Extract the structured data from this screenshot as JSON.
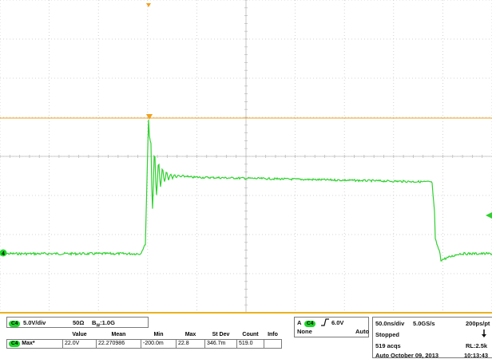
{
  "colors": {
    "trace": "#2fd12f",
    "trigger": "#f0a020",
    "grid": "#c9c9c9",
    "frame": "#e9b21f"
  },
  "channel": {
    "label": "C4",
    "marker": "4",
    "scale": "5.0V/div",
    "impedance": "50Ω",
    "bandwidth_prefix": "B",
    "bandwidth_sub": "W",
    "bandwidth_value": ":1.0G"
  },
  "trigger": {
    "mode_letter": "A",
    "channel": "C4",
    "edge_icon": "rising-edge-icon",
    "level": "6.0V",
    "coupling": "None",
    "type": "Auto"
  },
  "measurement": {
    "headers": [
      "Value",
      "Mean",
      "Min",
      "Max",
      "St Dev",
      "Count",
      "Info"
    ],
    "row": {
      "channel": "C4",
      "name": "Max*",
      "cells": [
        "22.0V",
        "22.270986",
        "-200.0m",
        "22.8",
        "346.7m",
        "519.0",
        ""
      ]
    }
  },
  "acquisition": {
    "timebase": "50.0ns/div",
    "sample_rate": "5.0GS/s",
    "resolution": "200ps/pt",
    "state": "Stopped",
    "acqs": "519 acqs",
    "record_length": "RL:2.5k",
    "mode": "Auto",
    "date": "October 09, 2013",
    "time": "10:13:43"
  }
}
